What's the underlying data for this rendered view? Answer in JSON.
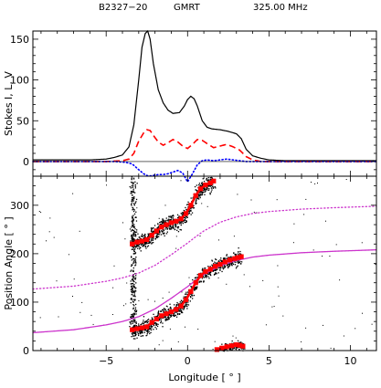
{
  "header": {
    "source": "B2327−20",
    "telescope": "GMRT",
    "frequency": "325.00 MHz"
  },
  "colors": {
    "I": "#000000",
    "L": "#ff0000",
    "V": "#0000ff",
    "fit": "#cc33cc",
    "pa_points": "#ff0000"
  },
  "chart_data": [
    {
      "type": "line",
      "panel": "profile",
      "ylabel": "Stokes I, L, V",
      "xlim": [
        -9.5,
        11.6
      ],
      "ylim": [
        -18,
        160
      ],
      "yticks": [
        0,
        50,
        100,
        150
      ],
      "series": [
        {
          "key": "I",
          "style": "solid",
          "x": [
            -9.5,
            -6,
            -5,
            -4.5,
            -4,
            -3.6,
            -3.3,
            -3,
            -2.8,
            -2.6,
            -2.45,
            -2.3,
            -2.1,
            -1.8,
            -1.5,
            -1.2,
            -0.9,
            -0.5,
            -0.2,
            0,
            0.2,
            0.4,
            0.6,
            0.9,
            1.2,
            1.5,
            2,
            2.5,
            3,
            3.3,
            3.6,
            4,
            4.5,
            5,
            6,
            8,
            11.6
          ],
          "y": [
            2,
            2,
            3,
            5,
            8,
            18,
            45,
            100,
            140,
            157,
            160,
            150,
            120,
            88,
            72,
            63,
            59,
            60,
            68,
            76,
            80,
            77,
            68,
            50,
            42,
            40,
            39,
            37,
            34,
            28,
            15,
            7,
            4,
            2,
            1,
            1,
            1
          ]
        },
        {
          "key": "L",
          "style": "dashed",
          "x": [
            -9.5,
            -5,
            -4,
            -3.6,
            -3.3,
            -3,
            -2.7,
            -2.5,
            -2.3,
            -2.1,
            -1.8,
            -1.5,
            -1.2,
            -0.9,
            -0.6,
            -0.3,
            0,
            0.3,
            0.6,
            0.9,
            1.2,
            1.6,
            2,
            2.4,
            2.8,
            3.2,
            3.6,
            4,
            4.5,
            11.6
          ],
          "y": [
            0,
            0,
            1,
            3,
            10,
            25,
            35,
            39,
            38,
            32,
            24,
            20,
            23,
            27,
            24,
            19,
            16,
            21,
            27,
            26,
            22,
            17,
            19,
            21,
            18,
            14,
            6,
            2,
            0,
            0
          ]
        },
        {
          "key": "V",
          "style": "dotted",
          "x": [
            -9.5,
            -4.5,
            -3.8,
            -3.4,
            -3,
            -2.7,
            -2.4,
            -2.1,
            -1.8,
            -1.5,
            -1.2,
            -0.9,
            -0.6,
            -0.3,
            0,
            0.3,
            0.6,
            0.9,
            1.2,
            1.6,
            2,
            2.4,
            2.8,
            3.2,
            3.6,
            4,
            11.6
          ],
          "y": [
            0,
            0,
            -1,
            -3,
            -10,
            -15,
            -18,
            -17,
            -16,
            -16,
            -15,
            -13,
            -11,
            -14,
            -25,
            -15,
            -4,
            1,
            2,
            1,
            2,
            3,
            2,
            1,
            0,
            0,
            0
          ]
        }
      ]
    },
    {
      "type": "scatter",
      "panel": "position_angle",
      "xlabel": "Longitude [ ° ]",
      "ylabel": "Position Angle [ ° ]",
      "xlim": [
        -9.5,
        11.6
      ],
      "ylim": [
        0,
        360
      ],
      "xticks": [
        -5,
        0,
        5,
        10
      ],
      "yticks": [
        0,
        100,
        200,
        300
      ],
      "series": [
        {
          "key": "pa_upper",
          "x": [
            -3.4,
            -3.1,
            -2.8,
            -2.5,
            -2.2,
            -1.9,
            -1.6,
            -1.3,
            -1,
            -0.7,
            -0.4,
            -0.1,
            0.2,
            0.5,
            0.8,
            1.1,
            1.4,
            1.6
          ],
          "y": [
            220,
            224,
            226,
            229,
            238,
            247,
            255,
            260,
            264,
            267,
            272,
            283,
            300,
            320,
            334,
            342,
            346,
            350
          ]
        },
        {
          "key": "pa_lower",
          "x": [
            -3.4,
            -3.1,
            -2.8,
            -2.5,
            -2.2,
            -1.9,
            -1.6,
            -1.3,
            -1,
            -0.7,
            -0.4,
            -0.1,
            0.2,
            0.5,
            0.8,
            1.1,
            1.4,
            1.7,
            2,
            2.3,
            2.6,
            2.9,
            3.1,
            3.3
          ],
          "y": [
            43,
            45,
            47,
            49,
            58,
            65,
            72,
            76,
            80,
            85,
            92,
            105,
            122,
            140,
            155,
            163,
            168,
            174,
            178,
            183,
            187,
            190,
            192,
            194
          ]
        },
        {
          "key": "pa_bottom",
          "x": [
            1.8,
            2.1,
            2.4,
            2.7,
            3,
            3.2,
            3.4
          ],
          "y": [
            2,
            5,
            8,
            10,
            12,
            11,
            9
          ]
        },
        {
          "key": "fit_upper",
          "style": "dotted",
          "x": [
            -9.5,
            -7,
            -5,
            -4,
            -3,
            -2,
            -1,
            -0.5,
            0,
            0.5,
            1,
            2,
            3,
            4,
            5,
            7,
            9,
            11.6
          ],
          "y": [
            127,
            133,
            143,
            150,
            160,
            176,
            198,
            210,
            222,
            235,
            247,
            265,
            276,
            283,
            287,
            292,
            295,
            298
          ]
        },
        {
          "key": "fit_lower",
          "style": "solid",
          "x": [
            -9.5,
            -7,
            -5,
            -4,
            -3,
            -2,
            -1,
            -0.5,
            0,
            0.5,
            1,
            2,
            3,
            4,
            5,
            7,
            9,
            11.6
          ],
          "y": [
            37,
            43,
            53,
            60,
            70,
            86,
            108,
            120,
            132,
            145,
            157,
            175,
            186,
            193,
            197,
            202,
            205,
            208
          ]
        }
      ]
    }
  ]
}
